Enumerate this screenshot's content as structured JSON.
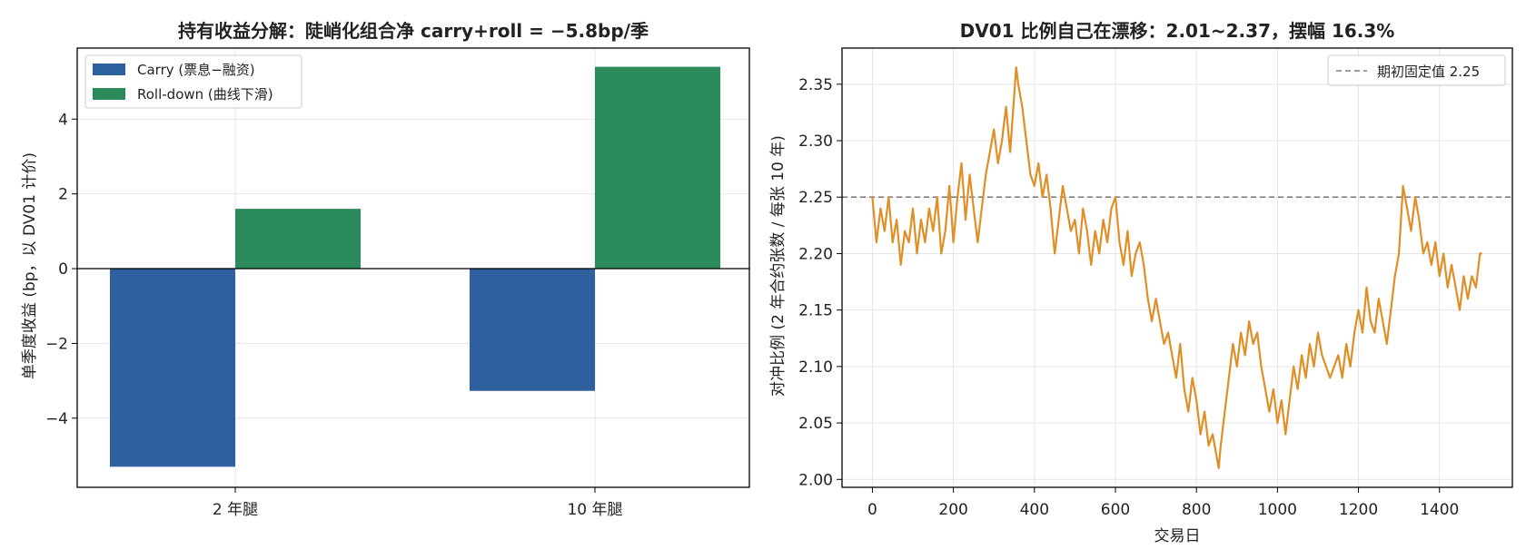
{
  "chart_data": [
    {
      "type": "bar",
      "title": "持有收益分解：陡峭化组合净 carry+roll = −5.8bp/季",
      "xlabel": "",
      "ylabel": "单季度收益 (bp，以 DV01 计价)",
      "categories": [
        "2 年腿",
        "10 年腿"
      ],
      "series": [
        {
          "name": "Carry (票息−融资)",
          "values": [
            -5.3,
            -3.27
          ],
          "color": "#2e5f9e"
        },
        {
          "name": "Roll-down (曲线下滑)",
          "values": [
            1.6,
            5.4
          ],
          "color": "#2a8a5a"
        }
      ],
      "ylim": [
        -5.85,
        5.9
      ],
      "yticks": [
        -4,
        0,
        2,
        4
      ],
      "ytick_labels": [
        "−4",
        "0",
        "2",
        "4"
      ],
      "extra_ytick": {
        "value": -2,
        "label": "−2"
      },
      "grid": true,
      "legend": "upper-left"
    },
    {
      "type": "line",
      "title": "DV01 比例自己在漂移：2.01~2.37，摆幅 16.3%",
      "xlabel": "交易日",
      "ylabel": "对冲比例 (2 年合约张数 / 每张 10 年)",
      "xlim": [
        -75,
        1580
      ],
      "ylim": [
        1.993,
        2.382
      ],
      "xticks": [
        0,
        200,
        400,
        600,
        800,
        1000,
        1200,
        1400
      ],
      "yticks": [
        2.0,
        2.05,
        2.1,
        2.15,
        2.2,
        2.25,
        2.3,
        2.35
      ],
      "ytick_labels": [
        "2.00",
        "2.05",
        "2.10",
        "2.15",
        "2.20",
        "2.25",
        "2.30",
        "2.35"
      ],
      "reference_line": {
        "name": "期初固定值 2.25",
        "value": 2.25,
        "color": "#7f7f7f"
      },
      "series_color": "#e08e26",
      "grid": true,
      "legend": "upper-right",
      "series": [
        {
          "x": [
            0,
            10,
            20,
            30,
            40,
            50,
            60,
            70,
            80,
            90,
            100,
            110,
            120,
            130,
            140,
            150,
            160,
            170,
            180,
            190,
            200,
            210,
            220,
            230,
            240,
            250,
            260,
            270,
            280,
            290,
            300,
            310,
            320,
            330,
            340,
            350,
            355,
            360,
            370,
            380,
            390,
            400,
            410,
            420,
            430,
            440,
            450,
            460,
            470,
            480,
            490,
            500,
            510,
            520,
            530,
            540,
            550,
            560,
            570,
            580,
            590,
            600,
            610,
            620,
            630,
            640,
            650,
            660,
            670,
            680,
            690,
            700,
            710,
            720,
            730,
            740,
            750,
            760,
            770,
            780,
            790,
            800,
            810,
            820,
            830,
            840,
            850,
            855,
            860,
            870,
            880,
            890,
            900,
            910,
            920,
            930,
            940,
            950,
            960,
            970,
            980,
            990,
            1000,
            1010,
            1020,
            1030,
            1040,
            1050,
            1060,
            1070,
            1080,
            1090,
            1100,
            1110,
            1120,
            1130,
            1140,
            1150,
            1160,
            1170,
            1180,
            1190,
            1200,
            1210,
            1220,
            1230,
            1240,
            1250,
            1260,
            1270,
            1280,
            1290,
            1300,
            1310,
            1320,
            1330,
            1340,
            1350,
            1360,
            1370,
            1380,
            1390,
            1400,
            1410,
            1420,
            1430,
            1440,
            1450,
            1460,
            1470,
            1480,
            1490,
            1500,
            1505
          ],
          "y": [
            2.25,
            2.21,
            2.24,
            2.22,
            2.25,
            2.21,
            2.23,
            2.19,
            2.22,
            2.21,
            2.24,
            2.2,
            2.23,
            2.21,
            2.24,
            2.22,
            2.25,
            2.2,
            2.22,
            2.26,
            2.21,
            2.25,
            2.28,
            2.23,
            2.27,
            2.24,
            2.21,
            2.24,
            2.27,
            2.29,
            2.31,
            2.28,
            2.3,
            2.33,
            2.29,
            2.34,
            2.365,
            2.35,
            2.33,
            2.3,
            2.27,
            2.26,
            2.28,
            2.25,
            2.27,
            2.24,
            2.2,
            2.23,
            2.26,
            2.24,
            2.22,
            2.23,
            2.2,
            2.24,
            2.22,
            2.19,
            2.22,
            2.2,
            2.23,
            2.21,
            2.24,
            2.25,
            2.21,
            2.19,
            2.22,
            2.18,
            2.2,
            2.21,
            2.19,
            2.16,
            2.14,
            2.16,
            2.14,
            2.12,
            2.13,
            2.11,
            2.09,
            2.12,
            2.08,
            2.06,
            2.09,
            2.07,
            2.04,
            2.06,
            2.03,
            2.04,
            2.02,
            2.01,
            2.03,
            2.06,
            2.09,
            2.12,
            2.1,
            2.13,
            2.11,
            2.14,
            2.12,
            2.13,
            2.1,
            2.08,
            2.06,
            2.08,
            2.05,
            2.07,
            2.04,
            2.07,
            2.1,
            2.08,
            2.11,
            2.09,
            2.12,
            2.1,
            2.13,
            2.11,
            2.1,
            2.09,
            2.1,
            2.11,
            2.09,
            2.12,
            2.1,
            2.13,
            2.15,
            2.13,
            2.17,
            2.14,
            2.13,
            2.16,
            2.14,
            2.12,
            2.15,
            2.18,
            2.2,
            2.26,
            2.24,
            2.22,
            2.25,
            2.23,
            2.2,
            2.21,
            2.19,
            2.21,
            2.18,
            2.2,
            2.17,
            2.19,
            2.17,
            2.15,
            2.18,
            2.16,
            2.18,
            2.17,
            2.2,
            2.2
          ]
        }
      ]
    }
  ]
}
